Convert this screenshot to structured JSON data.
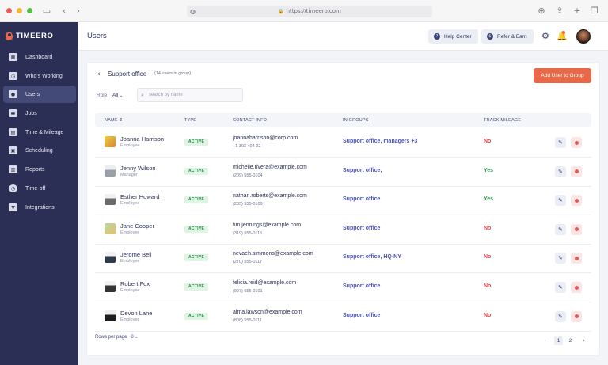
{
  "browser": {
    "url": "https://timeero.com"
  },
  "app": {
    "logo_text": "TIMEERO"
  },
  "sidebar": {
    "items": [
      {
        "label": "Dashboard",
        "icon": "dashboard-icon"
      },
      {
        "label": "Who's Working",
        "icon": "clock-icon"
      },
      {
        "label": "Users",
        "icon": "users-icon",
        "active": true
      },
      {
        "label": "Jobs",
        "icon": "briefcase-icon"
      },
      {
        "label": "Time & Mileage",
        "icon": "timesheet-icon"
      },
      {
        "label": "Scheduling",
        "icon": "calendar-icon"
      },
      {
        "label": "Reports",
        "icon": "reports-icon"
      },
      {
        "label": "Time-off",
        "icon": "time-off-icon"
      },
      {
        "label": "Integrations",
        "icon": "integrations-icon"
      }
    ]
  },
  "header": {
    "title": "Users",
    "help_label": "Help Center",
    "refer_label": "Refer & Earn"
  },
  "group": {
    "title": "Support office",
    "subtitle": "(14 users in group)",
    "add_button": "Add User to Group"
  },
  "filters": {
    "role_label": "Role",
    "role_value": "All",
    "search_placeholder": "search by name"
  },
  "table": {
    "columns": [
      "NAME",
      "TYPE",
      "CONTACT INFO",
      "IN GROUPS",
      "TRACK MILEAGE"
    ],
    "rows": [
      {
        "name": "Joanna Harrison",
        "role": "Employee",
        "type": "ACTIVE",
        "email": "joannaharrison@corp.com",
        "phone": "+1 303 404 22",
        "groups": "Support office, managers +3",
        "mileage": "No"
      },
      {
        "name": "Jenny Wilson",
        "role": "Manager",
        "type": "ACTIVE",
        "email": "michelle.rivera@example.com",
        "phone": "(209) 555-0104",
        "groups": "Support office,",
        "mileage": "Yes"
      },
      {
        "name": "Esther Howard",
        "role": "Employee",
        "type": "ACTIVE",
        "email": "nathan.roberts@example.com",
        "phone": "(205) 555-0100",
        "groups": "Support office",
        "mileage": "Yes"
      },
      {
        "name": "Jane Cooper",
        "role": "Employee",
        "type": "ACTIVE",
        "email": "tim.jennings@example.com",
        "phone": "(319) 555-0115",
        "groups": "Support office",
        "mileage": "No"
      },
      {
        "name": "Jerome Bell",
        "role": "Employee",
        "type": "ACTIVE",
        "email": "nevaeh.simmons@example.com",
        "phone": "(270) 555-0117",
        "groups": "Support office, HQ-NY",
        "mileage": "No"
      },
      {
        "name": "Robert Fox",
        "role": "Employee",
        "type": "ACTIVE",
        "email": "felicia.reid@example.com",
        "phone": "(907) 555-0101",
        "groups": "Support office",
        "mileage": "No"
      },
      {
        "name": "Devon Lane",
        "role": "Employee",
        "type": "ACTIVE",
        "email": "alma.lawson@example.com",
        "phone": "(808) 555-0111",
        "groups": "Support office",
        "mileage": "No"
      }
    ]
  },
  "pagination": {
    "rows_per_page_label": "Rows per page",
    "rows_per_page_value": "8",
    "pages": [
      "1",
      "2"
    ],
    "current_page": "1"
  },
  "colors": {
    "sidebar_bg": "#2b2f55",
    "accent_orange": "#e8684a",
    "link_blue": "#4b55b4",
    "yes_green": "#2d9a4f",
    "no_red": "#e04848"
  }
}
